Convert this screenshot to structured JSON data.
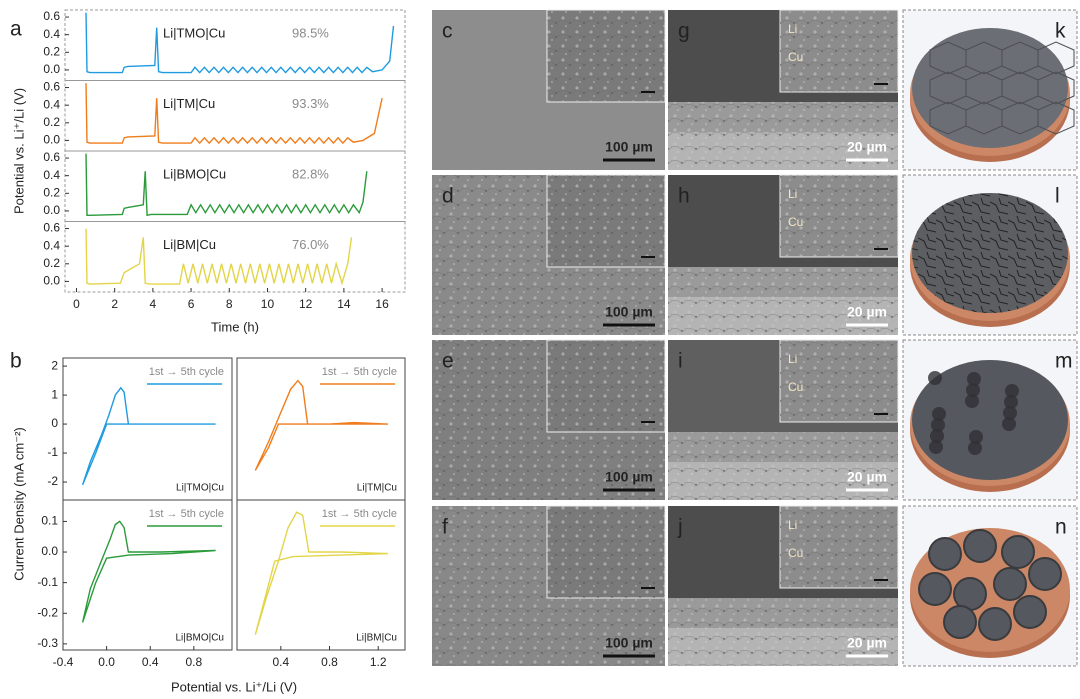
{
  "chart_data": [
    {
      "type": "line",
      "label": "Li|TMO|Cu",
      "annotation": "98.5%",
      "color": "#1f9be0",
      "ylabel": "Potential vs. Li⁺/Li (V)",
      "xlim": [
        -0.6,
        17.2
      ],
      "ylim": [
        -0.12,
        0.68
      ],
      "yticks": [
        {
          "value": 0,
          "label": "0.0"
        },
        0.2,
        0.4,
        0.6
      ],
      "x": [
        0.5,
        0.55,
        0.7,
        2.4,
        2.5,
        2.7,
        4.1,
        4.2,
        4.3,
        4.5,
        6.0,
        6.2,
        6.45,
        6.7,
        6.95,
        7.2,
        7.45,
        7.7,
        7.95,
        8.2,
        8.45,
        8.7,
        8.95,
        9.2,
        9.45,
        9.7,
        9.95,
        10.2,
        10.45,
        10.7,
        10.95,
        11.2,
        11.45,
        11.7,
        11.95,
        12.2,
        12.45,
        12.7,
        12.95,
        13.2,
        13.45,
        13.7,
        13.95,
        14.2,
        14.45,
        14.7,
        14.95,
        15.2,
        15.5,
        16.0,
        16.4,
        16.6
      ],
      "values": [
        0.65,
        -0.02,
        -0.03,
        -0.03,
        0.03,
        0.04,
        0.05,
        0.48,
        -0.02,
        -0.03,
        -0.03,
        0.03,
        -0.03,
        0.03,
        -0.03,
        0.03,
        -0.03,
        0.03,
        -0.03,
        0.03,
        -0.03,
        0.03,
        -0.03,
        0.03,
        -0.03,
        0.03,
        -0.03,
        0.03,
        -0.03,
        0.03,
        -0.03,
        0.03,
        -0.03,
        0.03,
        -0.03,
        0.03,
        -0.03,
        0.03,
        -0.03,
        0.03,
        -0.03,
        0.03,
        -0.03,
        0.03,
        -0.03,
        0.03,
        -0.03,
        0.03,
        -0.02,
        0.0,
        0.1,
        0.5
      ]
    },
    {
      "type": "line",
      "label": "Li|TM|Cu",
      "annotation": "93.3%",
      "color": "#f07c1c",
      "xlim": [
        -0.6,
        17.2
      ],
      "ylim": [
        -0.12,
        0.68
      ],
      "yticks": [
        {
          "value": 0,
          "label": "0.0"
        },
        0.2,
        0.4,
        0.6
      ],
      "x": [
        0.5,
        0.55,
        0.7,
        2.4,
        2.5,
        2.7,
        4.1,
        4.2,
        4.3,
        4.5,
        6.0,
        6.2,
        6.45,
        6.7,
        6.95,
        7.2,
        7.45,
        7.7,
        7.95,
        8.2,
        8.45,
        8.7,
        8.95,
        9.2,
        9.45,
        9.7,
        9.95,
        10.2,
        10.45,
        10.7,
        10.95,
        11.2,
        11.45,
        11.7,
        11.95,
        12.2,
        12.45,
        12.7,
        12.95,
        13.2,
        13.45,
        13.7,
        13.95,
        14.2,
        14.5,
        15.0,
        15.6,
        16.0
      ],
      "values": [
        0.65,
        -0.02,
        -0.03,
        -0.03,
        0.03,
        0.04,
        0.05,
        0.48,
        -0.02,
        -0.03,
        -0.03,
        0.03,
        -0.03,
        0.03,
        -0.03,
        0.03,
        -0.03,
        0.03,
        -0.03,
        0.03,
        -0.03,
        0.03,
        -0.03,
        0.03,
        -0.03,
        0.03,
        -0.03,
        0.03,
        -0.03,
        0.03,
        -0.03,
        0.03,
        -0.03,
        0.03,
        -0.03,
        0.03,
        -0.03,
        0.03,
        -0.03,
        0.03,
        -0.03,
        0.03,
        -0.03,
        0.03,
        -0.02,
        0.0,
        0.08,
        0.48
      ]
    },
    {
      "type": "line",
      "label": "Li|BMO|Cu",
      "annotation": "82.8%",
      "color": "#2a9a3a",
      "xlim": [
        -0.6,
        17.2
      ],
      "ylim": [
        -0.12,
        0.68
      ],
      "yticks": [
        {
          "value": 0,
          "label": "0.0"
        },
        0.2,
        0.4,
        0.6
      ],
      "x": [
        0.5,
        0.55,
        0.7,
        2.4,
        2.5,
        2.7,
        3.5,
        3.6,
        3.7,
        3.9,
        5.8,
        6.0,
        6.25,
        6.5,
        6.75,
        7.0,
        7.25,
        7.5,
        7.75,
        8.0,
        8.25,
        8.5,
        8.75,
        9.0,
        9.25,
        9.5,
        9.75,
        10.0,
        10.25,
        10.5,
        10.75,
        11.0,
        11.25,
        11.5,
        11.75,
        12.0,
        12.25,
        12.5,
        12.75,
        13.0,
        13.25,
        13.5,
        13.75,
        14.0,
        14.25,
        14.5,
        14.8,
        15.0,
        15.2
      ],
      "values": [
        0.65,
        -0.05,
        -0.05,
        -0.04,
        0.03,
        0.04,
        0.07,
        0.45,
        -0.05,
        -0.04,
        -0.04,
        0.07,
        -0.02,
        0.07,
        -0.02,
        0.07,
        -0.02,
        0.07,
        -0.02,
        0.07,
        -0.02,
        0.07,
        -0.02,
        0.07,
        -0.02,
        0.07,
        -0.02,
        0.07,
        -0.02,
        0.07,
        -0.02,
        0.07,
        -0.02,
        0.07,
        -0.02,
        0.07,
        -0.02,
        0.07,
        -0.02,
        0.07,
        -0.02,
        0.07,
        -0.02,
        0.07,
        -0.02,
        0.07,
        -0.02,
        0.1,
        0.45
      ]
    },
    {
      "type": "line",
      "label": "Li|BM|Cu",
      "annotation": "76.0%",
      "color": "#e3d548",
      "xlabel": "Time (h)",
      "xlim": [
        -0.6,
        17.2
      ],
      "ylim": [
        -0.12,
        0.68
      ],
      "xticks": [
        0,
        2,
        4,
        6,
        8,
        10,
        12,
        14,
        16
      ],
      "yticks": [
        {
          "value": 0,
          "label": "0.0"
        },
        0.2,
        0.4,
        0.6
      ],
      "x": [
        0.5,
        0.55,
        0.7,
        2.3,
        2.5,
        3.3,
        3.5,
        3.6,
        3.8,
        5.4,
        5.6,
        5.85,
        6.1,
        6.35,
        6.6,
        6.85,
        7.1,
        7.35,
        7.6,
        7.85,
        8.1,
        8.35,
        8.6,
        8.85,
        9.1,
        9.35,
        9.6,
        9.85,
        10.1,
        10.35,
        10.6,
        10.85,
        11.1,
        11.35,
        11.6,
        11.85,
        12.1,
        12.35,
        12.6,
        12.85,
        13.1,
        13.35,
        13.6,
        13.9,
        14.2,
        14.4
      ],
      "values": [
        0.6,
        -0.02,
        -0.03,
        -0.02,
        0.1,
        0.2,
        0.5,
        -0.02,
        -0.03,
        -0.03,
        0.2,
        -0.02,
        0.2,
        -0.02,
        0.2,
        -0.02,
        0.2,
        -0.02,
        0.2,
        -0.02,
        0.2,
        -0.02,
        0.2,
        -0.02,
        0.2,
        -0.02,
        0.2,
        -0.02,
        0.2,
        -0.02,
        0.2,
        -0.02,
        0.2,
        -0.02,
        0.2,
        -0.02,
        0.2,
        -0.02,
        0.2,
        -0.02,
        0.2,
        -0.02,
        0.2,
        -0.02,
        0.2,
        0.5
      ]
    },
    {
      "type": "line",
      "label": "Li|TMO|Cu",
      "ylabel": "Current Density (mA cm⁻²)",
      "xlim": [
        -0.4,
        1.15
      ],
      "ylim": [
        -2.62,
        2.28
      ],
      "yticks": [
        2,
        1,
        0,
        -1,
        -2
      ],
      "x": [
        -0.22,
        -0.15,
        -0.05,
        0.02,
        0.08,
        0.13,
        0.16,
        0.2,
        0.4,
        0.7,
        1.0,
        0.7,
        0.4,
        0.1,
        0.0,
        -0.1,
        -0.22
      ],
      "series": [
        {
          "name": "1st → 5th cycle",
          "color": "#1f9be0",
          "values": [
            -2.1,
            -1.3,
            -0.4,
            0.3,
            1.0,
            1.25,
            1.1,
            0,
            0,
            0,
            0,
            0,
            0,
            0,
            0,
            -1.0,
            -2.1
          ]
        }
      ]
    },
    {
      "type": "line",
      "label": "Li|TM|Cu",
      "xlim": [
        0.04,
        1.42
      ],
      "ylim": [
        -2.62,
        2.28
      ],
      "x": [
        0.19,
        0.3,
        0.4,
        0.48,
        0.54,
        0.58,
        0.62,
        0.8,
        1.0,
        1.28,
        1.0,
        0.7,
        0.45,
        0.38,
        0.3,
        0.19
      ],
      "series": [
        {
          "name": "1st → 5th cycle",
          "color": "#f07c1c",
          "values": [
            -1.6,
            -0.6,
            0.4,
            1.2,
            1.5,
            1.3,
            0,
            0,
            0.05,
            0,
            0,
            0,
            0,
            0,
            -0.8,
            -1.6
          ]
        }
      ]
    },
    {
      "type": "line",
      "label": "Li|BMO|Cu",
      "xlabel": "Potential vs. Li⁺/Li (V)",
      "xlim": [
        -0.4,
        1.15
      ],
      "ylim": [
        -0.32,
        0.17
      ],
      "xticks": [
        -0.4,
        {
          "value": 0,
          "label": "0.0"
        },
        0.4,
        0.8
      ],
      "yticks": [
        0.1,
        {
          "value": 0,
          "label": "0.0"
        },
        -0.1,
        -0.2,
        -0.3
      ],
      "x": [
        -0.22,
        -0.15,
        -0.05,
        0.03,
        0.08,
        0.12,
        0.16,
        0.2,
        0.5,
        1.0,
        0.6,
        0.2,
        0.0,
        -0.1,
        -0.22
      ],
      "series": [
        {
          "name": "1st → 5th cycle",
          "color": "#2a9a3a",
          "values": [
            -0.23,
            -0.12,
            -0.03,
            0.04,
            0.09,
            0.1,
            0.08,
            0,
            0,
            0.005,
            -0.005,
            -0.01,
            -0.02,
            -0.1,
            -0.23
          ]
        }
      ]
    },
    {
      "type": "line",
      "label": "Li|BM|Cu",
      "xlim": [
        0.04,
        1.42
      ],
      "ylim": [
        -0.32,
        0.17
      ],
      "xticks": [
        0.4,
        0.8,
        1.2
      ],
      "x": [
        0.19,
        0.28,
        0.38,
        0.46,
        0.53,
        0.58,
        0.63,
        0.9,
        1.28,
        0.9,
        0.5,
        0.35,
        0.27,
        0.19
      ],
      "series": [
        {
          "name": "1st → 5th cycle",
          "color": "#e3d548",
          "values": [
            -0.27,
            -0.15,
            -0.03,
            0.08,
            0.13,
            0.12,
            0,
            0,
            -0.005,
            -0.01,
            -0.015,
            -0.03,
            -0.15,
            -0.27
          ]
        }
      ]
    }
  ],
  "figure": {
    "panel_labels": [
      "a",
      "b"
    ],
    "panels": [
      {
        "label": "c",
        "scale_bar": "100 µm"
      },
      {
        "label": "d",
        "scale_bar": "100 µm"
      },
      {
        "label": "e",
        "scale_bar": "100 µm"
      },
      {
        "label": "f",
        "scale_bar": "100 µm"
      },
      {
        "label": "g",
        "scale_bar": "20 µm",
        "layers": [
          "Li",
          "Cu"
        ]
      },
      {
        "label": "h",
        "scale_bar": "20 µm",
        "layers": [
          "Li",
          "Cu"
        ]
      },
      {
        "label": "i",
        "scale_bar": "20 µm",
        "layers": [
          "Li",
          "Cu"
        ]
      },
      {
        "label": "j",
        "scale_bar": "20 µm",
        "layers": [
          "Li",
          "Cu"
        ]
      },
      {
        "label": "k"
      },
      {
        "label": "l"
      },
      {
        "label": "m"
      },
      {
        "label": "n"
      }
    ]
  }
}
